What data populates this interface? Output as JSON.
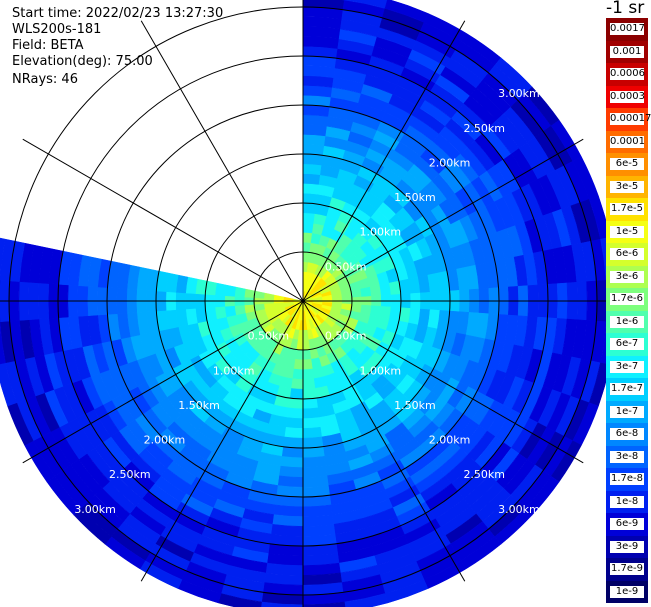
{
  "header": {
    "start_time": "Start time: 2022/02/23 13:27:30",
    "instrument": "WLS200s-181",
    "field": "Field: BETA",
    "elevation": "Elevation(deg): 75.00",
    "nrays": "NRays: 46"
  },
  "colorbar": {
    "unit_label": "-1 sr",
    "labels": [
      "0.0017",
      "0.001",
      "0.0006",
      "0.0003",
      "0.00017",
      "0.0001",
      "6e-5",
      "3e-5",
      "1.7e-5",
      "1e-5",
      "6e-6",
      "3e-6",
      "1.7e-6",
      "1e-6",
      "6e-7",
      "3e-7",
      "1.7e-7",
      "1e-7",
      "6e-8",
      "3e-8",
      "1.7e-8",
      "1e-8",
      "6e-9",
      "3e-9",
      "1.7e-9",
      "1e-9"
    ],
    "colors": [
      "#8b0000",
      "#a00000",
      "#c80000",
      "#ef0000",
      "#ff3c00",
      "#ff6c00",
      "#ff8f00",
      "#ffb400",
      "#ffe100",
      "#f5ff14",
      "#d4ff2c",
      "#adff50",
      "#7dff7d",
      "#50ffad",
      "#2cffd3",
      "#10f0ff",
      "#00cfff",
      "#00aaff",
      "#0087ff",
      "#0064ff",
      "#0040ff",
      "#0020f0",
      "#0000d8",
      "#0000b0",
      "#00008c",
      "#000066"
    ]
  },
  "chart_data": {
    "type": "heatmap",
    "subtype": "polar PPI (plan position indicator)",
    "field": "BETA",
    "elevation_deg": 75.0,
    "n_rays": 46,
    "range_ring_labels": [
      "0.50km",
      "1.00km",
      "1.50km",
      "2.00km",
      "2.50km",
      "3.00km"
    ],
    "range_rings_km": [
      0.5,
      1.0,
      1.5,
      2.0,
      2.5,
      3.0
    ],
    "max_range_km": 3.2,
    "spoke_spacing_deg": 30,
    "missing_sector_deg": [
      282,
      360
    ],
    "dominant_beta_by_range": [
      {
        "range_km": 0.25,
        "beta": "1e-5"
      },
      {
        "range_km": 0.5,
        "beta": "1.7e-6"
      },
      {
        "range_km": 0.75,
        "beta": "6e-7"
      },
      {
        "range_km": 1.0,
        "beta": "3e-7"
      },
      {
        "range_km": 1.25,
        "beta": "1.7e-7"
      },
      {
        "range_km": 1.5,
        "beta": "1e-7"
      },
      {
        "range_km": 1.75,
        "beta": "6e-8"
      },
      {
        "range_km": 2.0,
        "beta": "3e-8"
      },
      {
        "range_km": 2.5,
        "beta": "1e-8"
      },
      {
        "range_km": 3.0,
        "beta": "6e-9"
      }
    ]
  }
}
